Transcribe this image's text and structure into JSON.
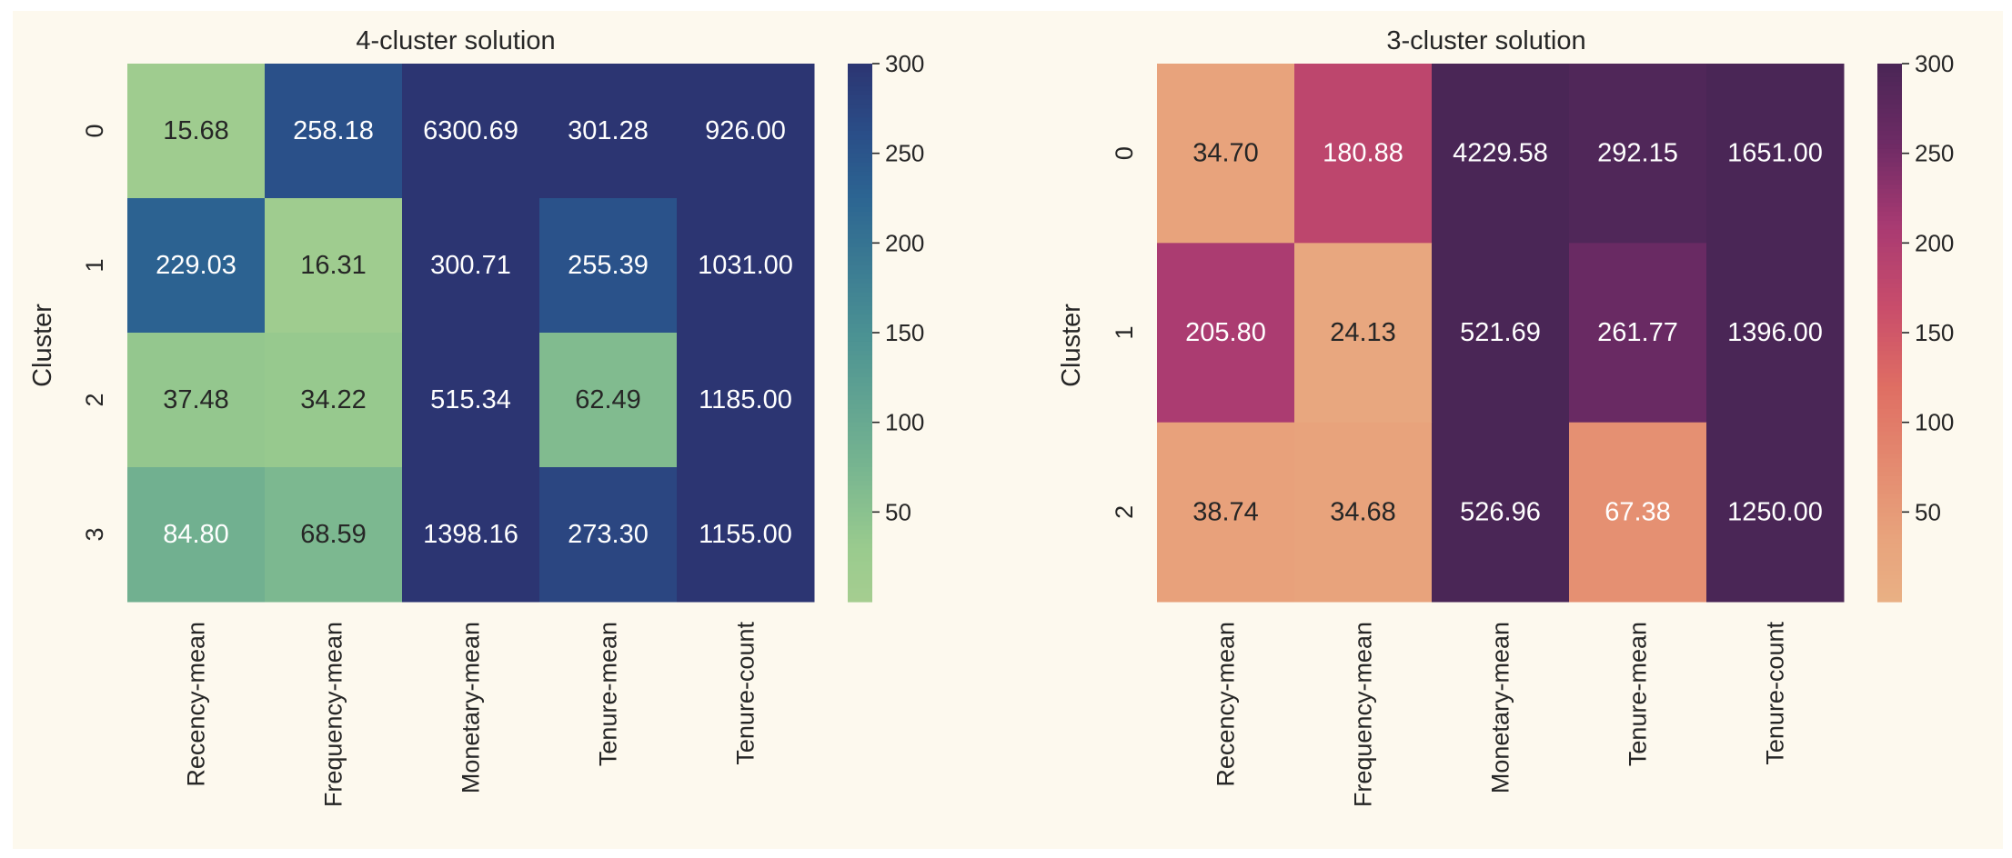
{
  "colors": {
    "figure_background": "#fdf9ee",
    "text_dark": "#262626",
    "text_light": "#ffffff"
  },
  "chart_data": [
    {
      "type": "heatmap",
      "title": "4-cluster solution",
      "ylabel": "Cluster",
      "xlabel": "",
      "colormap": "crest",
      "x_categories": [
        "Recency-mean",
        "Frequency-mean",
        "Monetary-mean",
        "Tenure-mean",
        "Tenure-count"
      ],
      "y_categories": [
        "0",
        "1",
        "2",
        "3"
      ],
      "values": [
        [
          15.68,
          258.18,
          6300.69,
          301.28,
          926.0
        ],
        [
          229.03,
          16.31,
          300.71,
          255.39,
          1031.0
        ],
        [
          37.48,
          34.22,
          515.34,
          62.49,
          1185.0
        ],
        [
          84.8,
          68.59,
          1398.16,
          273.3,
          1155.0
        ]
      ],
      "cell_labels": [
        [
          "15.68",
          "258.18",
          "6300.69",
          "301.28",
          "926.00"
        ],
        [
          "229.03",
          "16.31",
          "300.71",
          "255.39",
          "1031.00"
        ],
        [
          "37.48",
          "34.22",
          "515.34",
          "62.49",
          "1185.00"
        ],
        [
          "84.80",
          "68.59",
          "1398.16",
          "273.30",
          "1155.00"
        ]
      ],
      "color_range": [
        0,
        300
      ],
      "colorbar_ticks": [
        "300",
        "250",
        "200",
        "150",
        "100",
        "50"
      ],
      "colorbar_tick_values": [
        300,
        250,
        200,
        150,
        100,
        50
      ]
    },
    {
      "type": "heatmap",
      "title": "3-cluster solution",
      "ylabel": "Cluster",
      "xlabel": "",
      "colormap": "flare",
      "x_categories": [
        "Recency-mean",
        "Frequency-mean",
        "Monetary-mean",
        "Tenure-mean",
        "Tenure-count"
      ],
      "y_categories": [
        "0",
        "1",
        "2"
      ],
      "values": [
        [
          34.7,
          180.88,
          4229.58,
          292.15,
          1651.0
        ],
        [
          205.8,
          24.13,
          521.69,
          261.77,
          1396.0
        ],
        [
          38.74,
          34.68,
          526.96,
          67.38,
          1250.0
        ]
      ],
      "cell_labels": [
        [
          "34.70",
          "180.88",
          "4229.58",
          "292.15",
          "1651.00"
        ],
        [
          "205.80",
          "24.13",
          "521.69",
          "261.77",
          "1396.00"
        ],
        [
          "38.74",
          "34.68",
          "526.96",
          "67.38",
          "1250.00"
        ]
      ],
      "color_range": [
        0,
        300
      ],
      "colorbar_ticks": [
        "300",
        "250",
        "200",
        "150",
        "100",
        "50"
      ],
      "colorbar_tick_values": [
        300,
        250,
        200,
        150,
        100,
        50
      ]
    }
  ]
}
